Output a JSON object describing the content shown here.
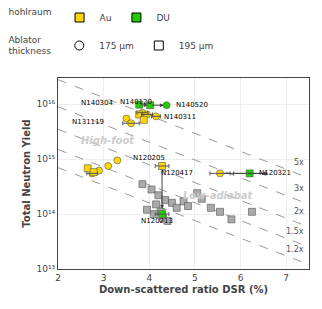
{
  "chart_data": {
    "type": "scatter",
    "x_label": "Down-scattered ratio DSR (%)",
    "y_label": "Total Neutron Yield",
    "xlim": [
      2,
      7.5
    ],
    "ylim": [
      10000000000000.0,
      3e+16
    ],
    "xticks": [
      2,
      3,
      4,
      5,
      6,
      7
    ],
    "yticks": [
      {
        "value": 10000000000000.0,
        "label": "10¹³"
      },
      {
        "value": 100000000000000.0,
        "label": "10¹⁴"
      },
      {
        "value": 1000000000000000.0,
        "label": "10¹⁵"
      },
      {
        "value": 1e+16,
        "label": "10¹⁶"
      }
    ],
    "log": "y",
    "grid": true,
    "series": [
      {
        "type": "line",
        "line_style": "dashed",
        "color": "#999999",
        "label": "5x",
        "x": [
          2.0,
          7.5
        ],
        "values": [
          2.8e+16,
          450000000000000.0
        ]
      },
      {
        "type": "line",
        "line_style": "dashed",
        "color": "#999999",
        "label": "3x",
        "x": [
          2.0,
          7.5
        ],
        "values": [
          9000000000000000.0,
          150000000000000.0
        ]
      },
      {
        "type": "line",
        "line_style": "dashed",
        "color": "#999999",
        "label": "2x",
        "x": [
          2.0,
          7.5
        ],
        "values": [
          3500000000000000.0,
          58000000000000.0
        ]
      },
      {
        "type": "line",
        "line_style": "dashed",
        "color": "#999999",
        "label": "1.5x",
        "x": [
          2.0,
          7.5
        ],
        "values": [
          1500000000000000.0,
          25000000000000.0
        ]
      },
      {
        "type": "line",
        "line_style": "dashed",
        "color": "#999999",
        "label": "1.2x",
        "x": [
          2.0,
          7.5
        ],
        "values": [
          700000000000000.0,
          12000000000000.0
        ]
      },
      {
        "type": "scatter",
        "marker": "square",
        "color": "#AAAAAA",
        "x": [
          3.85,
          4.05,
          4.2,
          4.35,
          4.15,
          4.25,
          4.3,
          4.4,
          4.5,
          4.6,
          4.75,
          4.85,
          5.05,
          5.15,
          5.35,
          5.55,
          6.25,
          4.1,
          3.95,
          5.8
        ],
        "values": [
          350000000000000.0,
          280000000000000.0,
          220000000000000.0,
          180000000000000.0,
          150000000000000.0,
          110000000000000.0,
          85000000000000.0,
          75000000000000.0,
          160000000000000.0,
          130000000000000.0,
          170000000000000.0,
          140000000000000.0,
          240000000000000.0,
          190000000000000.0,
          130000000000000.0,
          110000000000000.0,
          110000000000000.0,
          100000000000000.0,
          120000000000000.0,
          80000000000000.0
        ]
      },
      {
        "type": "scatter",
        "marker": "circle",
        "color": "#FFD700",
        "x": [
          3.5,
          3.6,
          3.85,
          3.95,
          4.15,
          3.3,
          3.1,
          2.9,
          2.75
        ],
        "values": [
          5500000000000000.0,
          4500000000000000.0,
          7000000000000000.0,
          6500000000000000.0,
          6000000000000000.0,
          950000000000000.0,
          750000000000000.0,
          620000000000000.0,
          550000000000000.0
        ]
      },
      {
        "type": "scatter",
        "marker": "square",
        "color": "#FFD700",
        "x": [
          3.78,
          3.88,
          2.65,
          2.78,
          4.28
        ],
        "values": [
          6500000000000000.0,
          5200000000000000.0,
          680000000000000.0,
          580000000000000.0,
          750000000000000.0
        ]
      },
      {
        "type": "scatter",
        "marker": "square",
        "color": "#22CC00",
        "x": [
          3.78,
          4.02,
          4.28,
          6.2
        ],
        "values": [
          9800000000000000.0,
          9600000000000000.0,
          100000000000000.0,
          550000000000000.0
        ]
      },
      {
        "type": "scatter",
        "marker": "circle",
        "color": "#22CC00",
        "x": [
          4.38
        ],
        "values": [
          9600000000000000.0
        ]
      },
      {
        "type": "scatter",
        "marker": "circle",
        "color": "#FFD700",
        "x": [
          5.55
        ],
        "values": [
          550000000000000.0
        ]
      }
    ],
    "error_bars": {
      "color": "#555555",
      "x": [
        3.6,
        3.85,
        3.95,
        4.15,
        2.75,
        4.28,
        5.55,
        6.2,
        4.28
      ],
      "y": [
        4500000000000000.0,
        7000000000000000.0,
        6500000000000000.0,
        6000000000000000.0,
        550000000000000.0,
        750000000000000.0,
        550000000000000.0,
        550000000000000.0,
        100000000000000.0
      ],
      "x_error": [
        0.18,
        0.12,
        0.12,
        0.1,
        0.12,
        0.15,
        0.22,
        0.35,
        0.15
      ]
    },
    "arrows": [
      {
        "color": "#444444",
        "x0": 3.78,
        "y0": 9800000000000000.0,
        "x1": 3.97,
        "y1": 9600000000000000.0
      },
      {
        "color": "#444444",
        "x0": 4.02,
        "y0": 9600000000000000.0,
        "x1": 4.32,
        "y1": 9600000000000000.0
      },
      {
        "color": "#444444",
        "x0": 4.28,
        "y0": 650000000000000.0,
        "x1": 4.28,
        "y1": 125000000000000.0
      },
      {
        "color": "#444444",
        "x0": 5.6,
        "y0": 550000000000000.0,
        "x1": 6.6,
        "y1": 550000000000000.0
      }
    ],
    "annotations": [
      {
        "text": "N140304",
        "x": 3.27,
        "y": 1.05e+16,
        "align": "right"
      },
      {
        "text": "N140120",
        "x": 3.72,
        "y": 1.12e+16,
        "align": "center"
      },
      {
        "text": "N140520",
        "x": 4.55,
        "y": 9600000000000000.0,
        "align": "left"
      },
      {
        "text": "N131119",
        "x": 3.05,
        "y": 4800000000000000.0,
        "align": "right"
      },
      {
        "text": "N140311",
        "x": 4.28,
        "y": 5800000000000000.0,
        "align": "left"
      },
      {
        "text": "N120205",
        "x": 4.0,
        "y": 1050000000000000.0,
        "align": "center"
      },
      {
        "text": "N120417",
        "x": 5.0,
        "y": 550000000000000.0,
        "align": "right"
      },
      {
        "text": "N120321",
        "x": 6.35,
        "y": 550000000000000.0,
        "align": "left"
      },
      {
        "text": "N120213",
        "x": 4.18,
        "y": 75000000000000.0,
        "align": "center"
      },
      {
        "text": "High-foot",
        "x": 2.45,
        "y": 2200000000000000.0,
        "align": "left",
        "color": "#cccccc"
      },
      {
        "text": "Low-adiabat",
        "x": 4.7,
        "y": 220000000000000.0,
        "align": "left",
        "color": "#cccccc"
      }
    ],
    "legends": [
      {
        "title": "hohlraum",
        "entries": [
          {
            "name": "Au",
            "marker": "square",
            "color": "#FFD700"
          },
          {
            "name": "DU",
            "marker": "square",
            "color": "#22CC00"
          }
        ]
      },
      {
        "title": "Ablator\nthickness",
        "entries": [
          {
            "name": "175 μm",
            "marker": "circle"
          },
          {
            "name": "195 μm",
            "marker": "square"
          }
        ]
      }
    ]
  }
}
